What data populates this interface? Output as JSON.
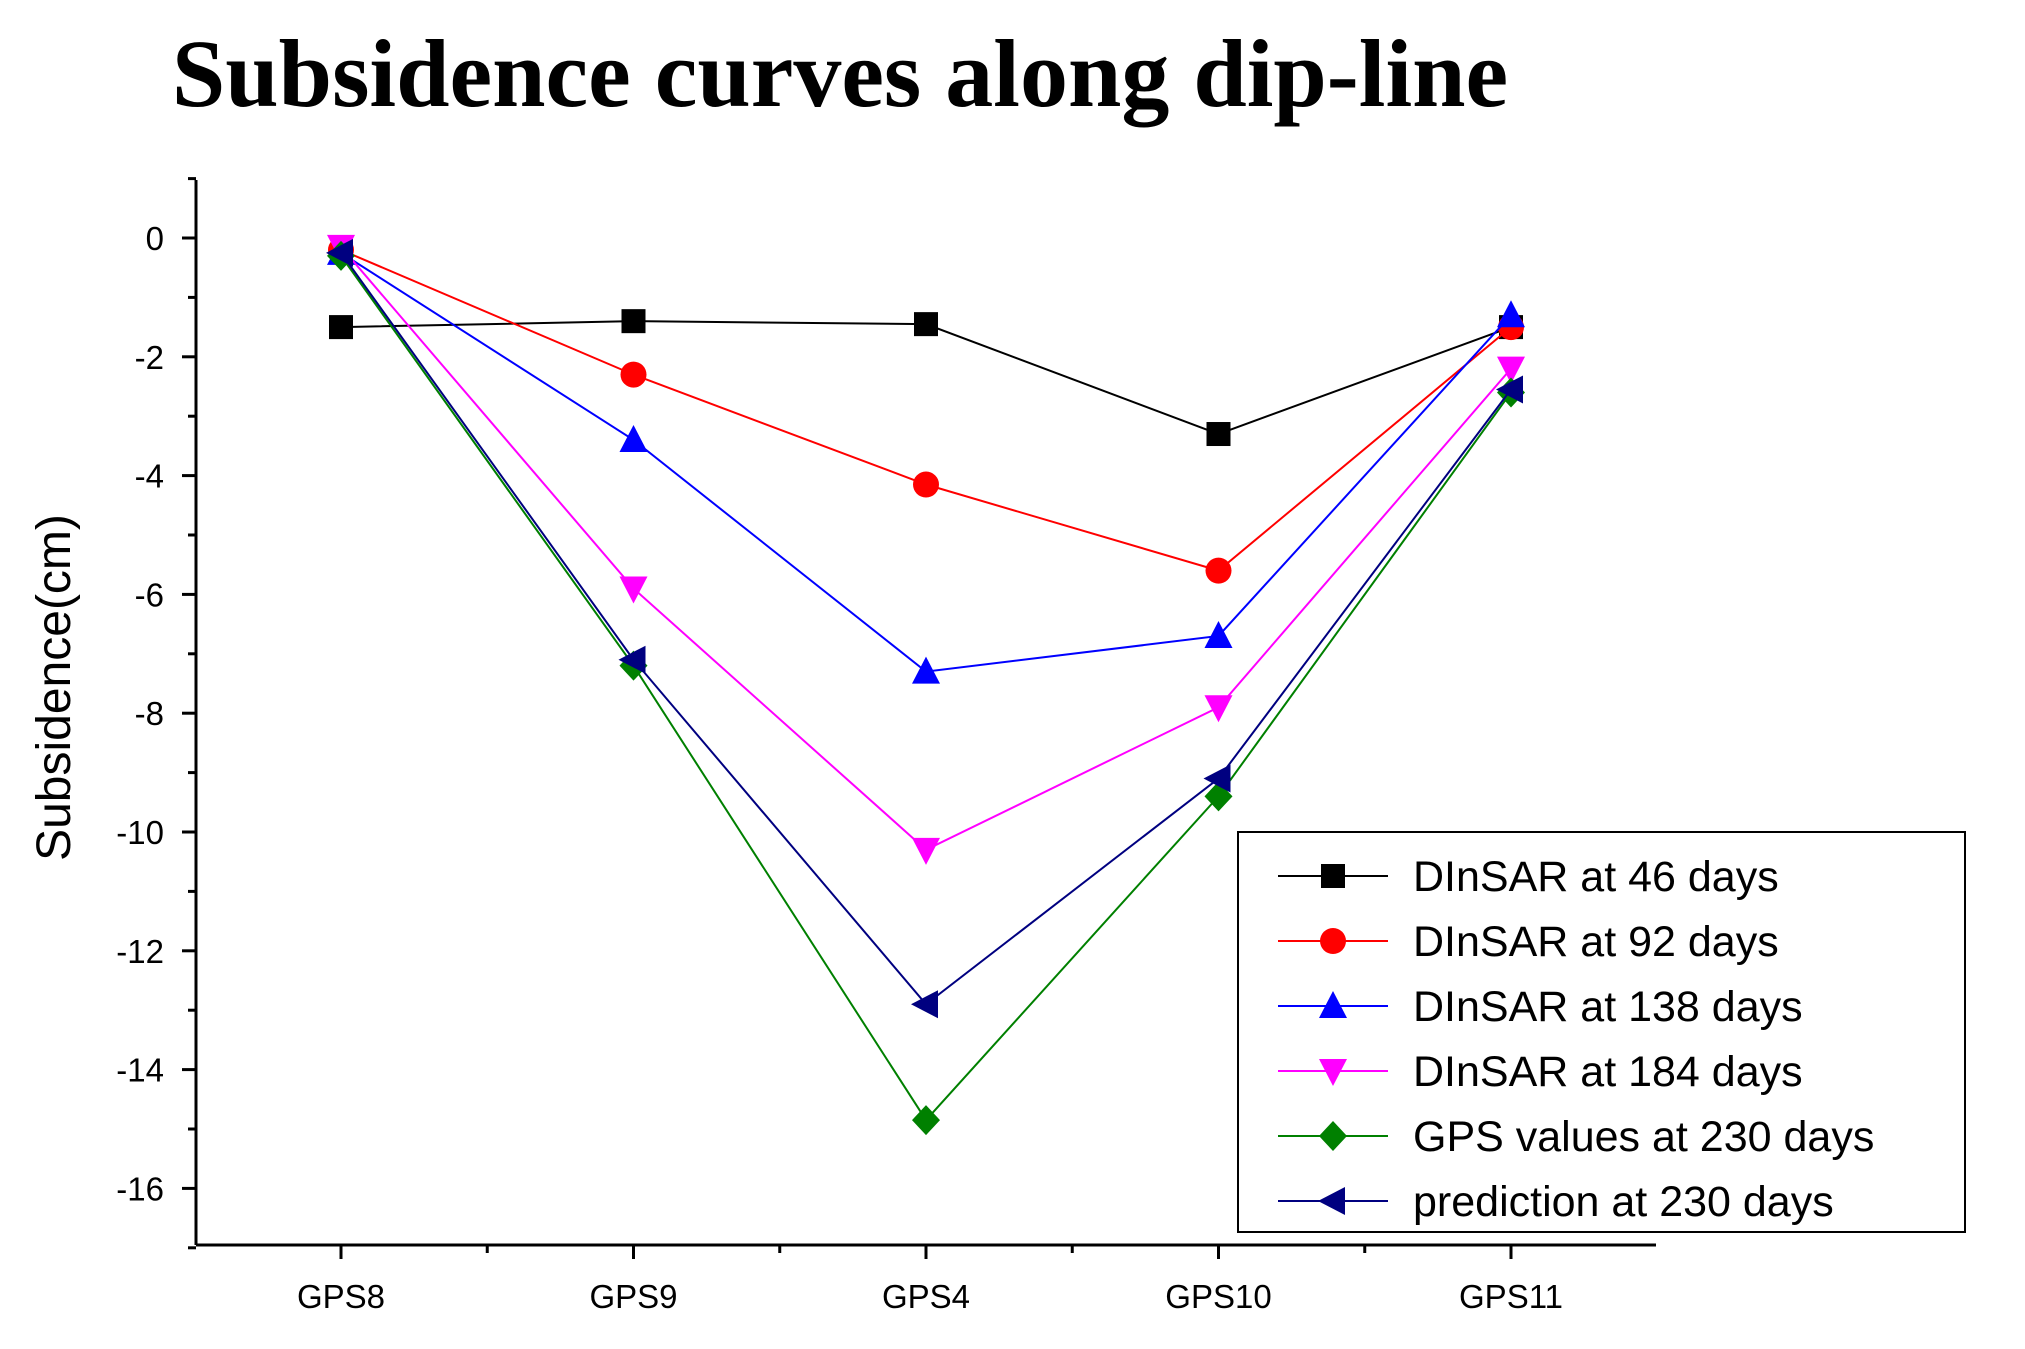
{
  "chart_data": {
    "type": "line",
    "title": "Subsidence curves along dip-line",
    "xlabel": "",
    "ylabel": "Subsidence(cm)",
    "categories": [
      "GPS8",
      "GPS9",
      "GPS4",
      "GPS10",
      "GPS11"
    ],
    "ylim": [
      -17,
      1
    ],
    "yticks": [
      0,
      -2,
      -4,
      -6,
      -8,
      -10,
      -12,
      -14,
      -16
    ],
    "grid": false,
    "legend_position": "bottom-right",
    "series": [
      {
        "name": "DInSAR at 46 days",
        "color": "#000000",
        "marker": "square",
        "values": [
          -1.5,
          -1.4,
          -1.45,
          -3.3,
          -1.5
        ]
      },
      {
        "name": "DInSAR at 92 days",
        "color": "#ff0000",
        "marker": "circle",
        "values": [
          -0.2,
          -2.3,
          -4.15,
          -5.6,
          -1.5
        ]
      },
      {
        "name": "DInSAR at 138 days",
        "color": "#0000ff",
        "marker": "triangle-up",
        "values": [
          -0.25,
          -3.4,
          -7.3,
          -6.7,
          -1.3
        ]
      },
      {
        "name": "DInSAR at 184 days",
        "color": "#ff00ff",
        "marker": "triangle-down",
        "values": [
          -0.15,
          -5.9,
          -10.3,
          -7.9,
          -2.2
        ]
      },
      {
        "name": "GPS values at 230 days",
        "color": "#008000",
        "marker": "diamond",
        "values": [
          -0.3,
          -7.2,
          -14.85,
          -9.4,
          -2.6
        ]
      },
      {
        "name": "prediction at 230 days",
        "color": "#000080",
        "marker": "triangle-left",
        "values": [
          -0.25,
          -7.1,
          -12.9,
          -9.1,
          -2.55
        ]
      }
    ]
  }
}
